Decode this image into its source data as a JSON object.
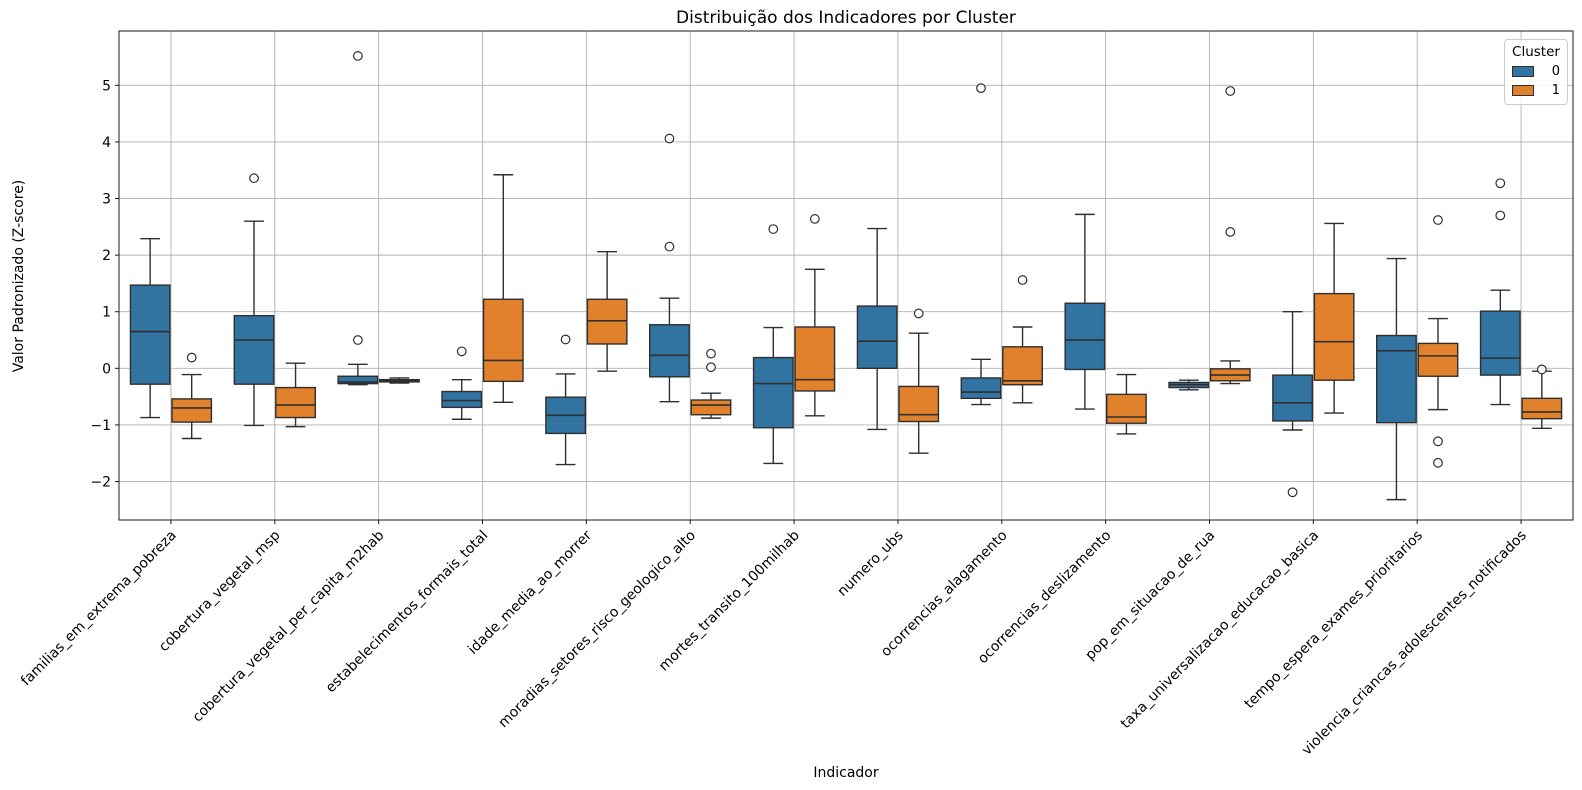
{
  "figure": {
    "title": "Distribuição dos Indicadores por Cluster",
    "xlabel": "Indicador",
    "ylabel": "Valor Padronizado (Z-score)"
  },
  "legend": {
    "title": "Cluster",
    "entries": [
      {
        "label": "0",
        "color": "#3274a1"
      },
      {
        "label": "1",
        "color": "#e1812c"
      }
    ]
  },
  "chart_data": {
    "type": "boxplot",
    "title": "Distribuição dos Indicadores por Cluster",
    "xlabel": "Indicador",
    "ylabel": "Valor Padronizado (Z-score)",
    "ylim": [
      -2.68,
      5.96
    ],
    "yticks": [
      -2,
      -1,
      0,
      1,
      2,
      3,
      4,
      5
    ],
    "grid": true,
    "legend_position": "upper right",
    "categories": [
      "familias_em_extrema_pobreza",
      "cobertura_vegetal_msp",
      "cobertura_vegetal_per_capita_m2hab",
      "estabelecimentos_formais_total",
      "idade_media_ao_morrer",
      "moradias_setores_risco_geologico_alto",
      "mortes_transito_100milhab",
      "numero_ubs",
      "ocorrencias_alagamento",
      "ocorrencias_deslizamento",
      "pop_em_situacao_de_rua",
      "taxa_universalizacao_educacao_basica",
      "tempo_espera_exames_prioritarios",
      "violencia_criancas_adolescentes_notificados"
    ],
    "series": [
      {
        "name": "0",
        "color": "#3274a1",
        "boxes": [
          {
            "whislo": -0.87,
            "q1": -0.28,
            "med": 0.65,
            "q3": 1.47,
            "whishi": 2.29,
            "outliers": []
          },
          {
            "whislo": -1.01,
            "q1": -0.28,
            "med": 0.5,
            "q3": 0.93,
            "whishi": 2.6,
            "outliers": [
              3.36
            ]
          },
          {
            "whislo": -0.29,
            "q1": -0.27,
            "med": -0.24,
            "q3": -0.14,
            "whishi": 0.07,
            "outliers": [
              5.52,
              0.5
            ]
          },
          {
            "whislo": -0.9,
            "q1": -0.69,
            "med": -0.57,
            "q3": -0.41,
            "whishi": -0.2,
            "outliers": [
              0.3
            ]
          },
          {
            "whislo": -1.7,
            "q1": -1.15,
            "med": -0.83,
            "q3": -0.51,
            "whishi": -0.1,
            "outliers": [
              0.51
            ]
          },
          {
            "whislo": -0.59,
            "q1": -0.15,
            "med": 0.23,
            "q3": 0.77,
            "whishi": 1.24,
            "outliers": [
              4.06,
              2.15
            ]
          },
          {
            "whislo": -1.68,
            "q1": -1.05,
            "med": -0.27,
            "q3": 0.19,
            "whishi": 0.72,
            "outliers": [
              2.46
            ]
          },
          {
            "whislo": -1.08,
            "q1": 0.0,
            "med": 0.48,
            "q3": 1.1,
            "whishi": 2.47,
            "outliers": []
          },
          {
            "whislo": -0.64,
            "q1": -0.53,
            "med": -0.42,
            "q3": -0.17,
            "whishi": 0.16,
            "outliers": [
              4.95
            ]
          },
          {
            "whislo": -0.72,
            "q1": -0.02,
            "med": 0.5,
            "q3": 1.15,
            "whishi": 2.72,
            "outliers": []
          },
          {
            "whislo": -0.38,
            "q1": -0.34,
            "med": -0.29,
            "q3": -0.25,
            "whishi": -0.21,
            "outliers": []
          },
          {
            "whislo": -1.09,
            "q1": -0.93,
            "med": -0.61,
            "q3": -0.12,
            "whishi": 1.0,
            "outliers": [
              -2.19
            ]
          },
          {
            "whislo": -2.32,
            "q1": -0.96,
            "med": 0.31,
            "q3": 0.58,
            "whishi": 1.94,
            "outliers": []
          },
          {
            "whislo": -0.64,
            "q1": -0.12,
            "med": 0.18,
            "q3": 1.01,
            "whishi": 1.38,
            "outliers": [
              3.27,
              2.7
            ]
          }
        ]
      },
      {
        "name": "1",
        "color": "#e1812c",
        "boxes": [
          {
            "whislo": -1.24,
            "q1": -0.95,
            "med": -0.7,
            "q3": -0.54,
            "whishi": -0.11,
            "outliers": [
              0.19
            ]
          },
          {
            "whislo": -1.03,
            "q1": -0.87,
            "med": -0.65,
            "q3": -0.34,
            "whishi": 0.09,
            "outliers": []
          },
          {
            "whislo": -0.26,
            "q1": -0.24,
            "med": -0.22,
            "q3": -0.2,
            "whishi": -0.17,
            "outliers": []
          },
          {
            "whislo": -0.6,
            "q1": -0.23,
            "med": 0.14,
            "q3": 1.22,
            "whishi": 3.42,
            "outliers": []
          },
          {
            "whislo": -0.05,
            "q1": 0.43,
            "med": 0.84,
            "q3": 1.22,
            "whishi": 2.06,
            "outliers": []
          },
          {
            "whislo": -0.88,
            "q1": -0.82,
            "med": -0.65,
            "q3": -0.56,
            "whishi": -0.44,
            "outliers": [
              0.26,
              0.02
            ]
          },
          {
            "whislo": -0.84,
            "q1": -0.4,
            "med": -0.2,
            "q3": 0.73,
            "whishi": 1.75,
            "outliers": [
              2.64
            ]
          },
          {
            "whislo": -1.5,
            "q1": -0.94,
            "med": -0.82,
            "q3": -0.32,
            "whishi": 0.62,
            "outliers": [
              0.97
            ]
          },
          {
            "whislo": -0.61,
            "q1": -0.29,
            "med": -0.22,
            "q3": 0.38,
            "whishi": 0.73,
            "outliers": [
              1.56
            ]
          },
          {
            "whislo": -1.16,
            "q1": -0.97,
            "med": -0.86,
            "q3": -0.46,
            "whishi": -0.11,
            "outliers": []
          },
          {
            "whislo": -0.27,
            "q1": -0.22,
            "med": -0.12,
            "q3": -0.01,
            "whishi": 0.13,
            "outliers": [
              4.9,
              2.41
            ]
          },
          {
            "whislo": -0.79,
            "q1": -0.21,
            "med": 0.47,
            "q3": 1.32,
            "whishi": 2.56,
            "outliers": []
          },
          {
            "whislo": -0.73,
            "q1": -0.14,
            "med": 0.22,
            "q3": 0.44,
            "whishi": 0.88,
            "outliers": [
              2.62,
              -1.29,
              -1.67
            ]
          },
          {
            "whislo": -1.06,
            "q1": -0.89,
            "med": -0.77,
            "q3": -0.53,
            "whishi": -0.05,
            "outliers": [
              -0.02
            ]
          }
        ]
      }
    ]
  }
}
